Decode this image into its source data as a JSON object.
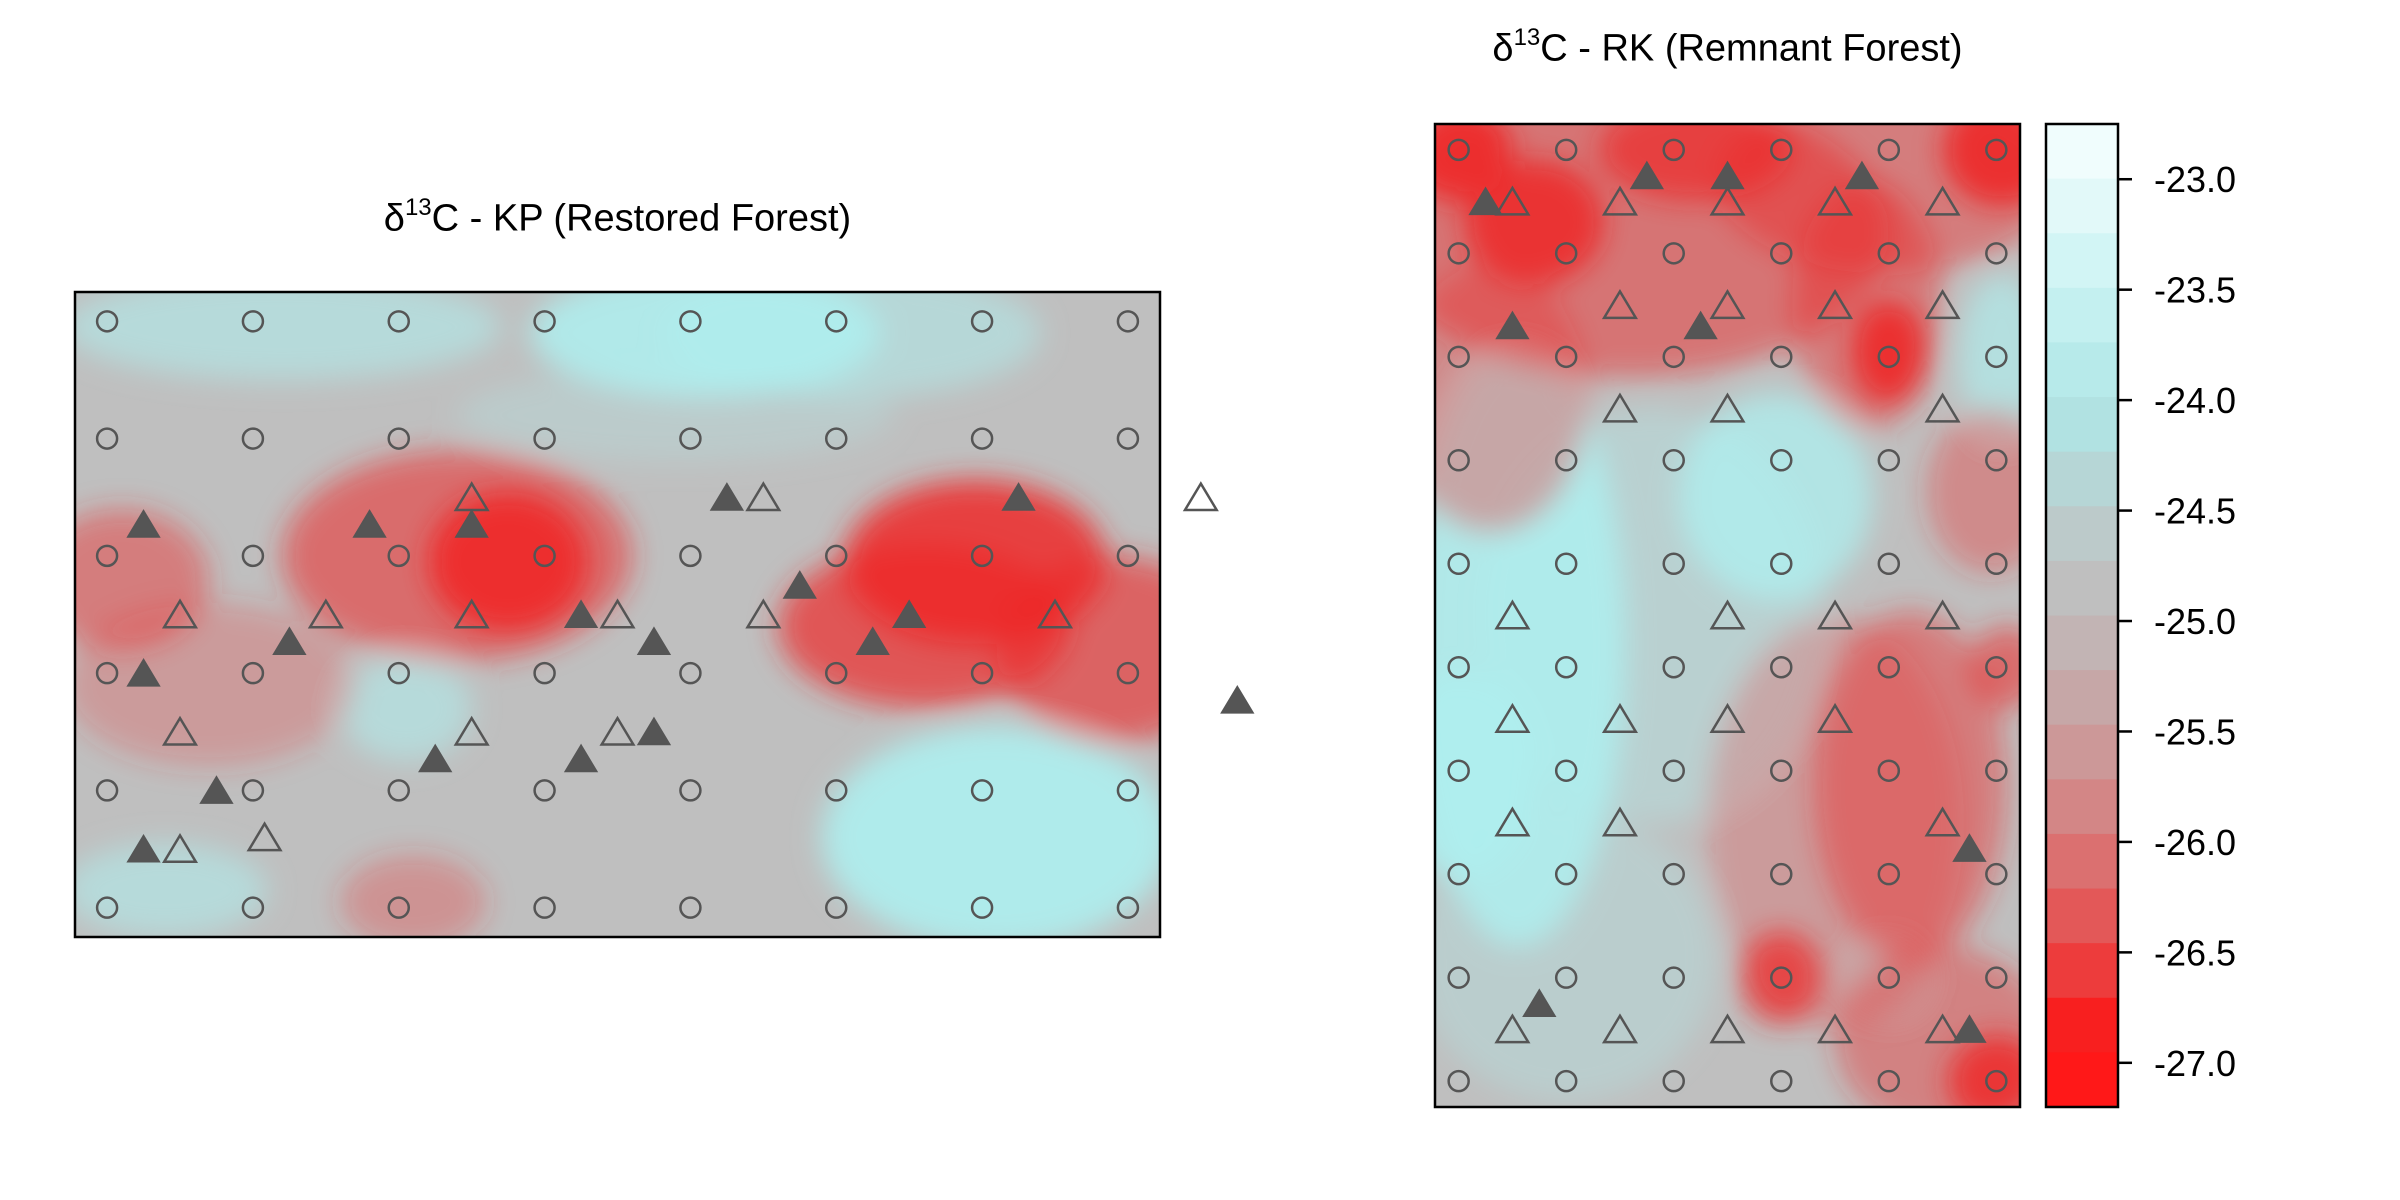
{
  "chart_data": [
    {
      "type": "heatmap",
      "title": {
        "symbol": "δ",
        "superscript": "13",
        "text": "C - KP (Restored Forest)"
      },
      "grid_x": [
        1,
        2,
        3,
        4,
        5,
        6,
        7,
        8
      ],
      "grid_y": [
        1,
        2,
        3,
        4,
        5,
        6
      ],
      "background_color": "#bfbfbf",
      "plot_border": true,
      "low_spots": [
        {
          "x": 3.75,
          "y": 3.95,
          "r": 0.55,
          "ry": 0.6,
          "level": 0.95
        },
        {
          "x": 3.4,
          "y": 4.0,
          "r": 1.2,
          "ry": 0.9,
          "level": 0.55
        },
        {
          "x": 6.95,
          "y": 3.95,
          "r": 0.9,
          "ry": 0.7,
          "level": 0.85
        },
        {
          "x": 6.6,
          "y": 3.4,
          "r": 1.0,
          "ry": 0.7,
          "level": 0.7
        },
        {
          "x": 7.9,
          "y": 3.2,
          "r": 0.8,
          "ry": 0.8,
          "level": 0.6
        },
        {
          "x": 1.1,
          "y": 3.8,
          "r": 0.6,
          "ry": 0.6,
          "level": 0.45
        },
        {
          "x": 1.7,
          "y": 2.9,
          "r": 1.0,
          "ry": 0.7,
          "level": 0.25
        },
        {
          "x": 3.1,
          "y": 1.05,
          "r": 0.5,
          "ry": 0.4,
          "level": 0.3
        }
      ],
      "high_spots": [
        {
          "x": 5.1,
          "y": 5.9,
          "r": 1.2,
          "ry": 0.55,
          "level": 0.85
        },
        {
          "x": 6.1,
          "y": 5.9,
          "r": 1.3,
          "ry": 0.55,
          "level": 0.5
        },
        {
          "x": 2.2,
          "y": 5.95,
          "r": 1.5,
          "ry": 0.45,
          "level": 0.55
        },
        {
          "x": 7.1,
          "y": 1.6,
          "r": 1.2,
          "ry": 0.95,
          "level": 0.9
        },
        {
          "x": 1.4,
          "y": 1.15,
          "r": 0.7,
          "ry": 0.4,
          "level": 0.55
        },
        {
          "x": 3.05,
          "y": 2.7,
          "r": 0.45,
          "ry": 0.45,
          "level": 0.55
        },
        {
          "x": 4.9,
          "y": 5.2,
          "r": 1.5,
          "ry": 0.4,
          "level": 0.25
        }
      ],
      "circles": [
        [
          1,
          6
        ],
        [
          2,
          6
        ],
        [
          3,
          6
        ],
        [
          4,
          6
        ],
        [
          5,
          6
        ],
        [
          6,
          6
        ],
        [
          7,
          6
        ],
        [
          8,
          6
        ],
        [
          1,
          5
        ],
        [
          2,
          5
        ],
        [
          3,
          5
        ],
        [
          4,
          5
        ],
        [
          5,
          5
        ],
        [
          6,
          5
        ],
        [
          7,
          5
        ],
        [
          8,
          5
        ],
        [
          1,
          4
        ],
        [
          2,
          4
        ],
        [
          3,
          4
        ],
        [
          4,
          4
        ],
        [
          5,
          4
        ],
        [
          6,
          4
        ],
        [
          7,
          4
        ],
        [
          8,
          4
        ],
        [
          1,
          3
        ],
        [
          2,
          3
        ],
        [
          3,
          3
        ],
        [
          4,
          3
        ],
        [
          5,
          3
        ],
        [
          6,
          3
        ],
        [
          7,
          3
        ],
        [
          8,
          3
        ],
        [
          1,
          2
        ],
        [
          2,
          2
        ],
        [
          3,
          2
        ],
        [
          4,
          2
        ],
        [
          5,
          2
        ],
        [
          6,
          2
        ],
        [
          7,
          2
        ],
        [
          8,
          2
        ],
        [
          1,
          1
        ],
        [
          2,
          1
        ],
        [
          3,
          1
        ],
        [
          4,
          1
        ],
        [
          5,
          1
        ],
        [
          6,
          1
        ],
        [
          7,
          1
        ],
        [
          8,
          1
        ]
      ],
      "open_triangles": [
        [
          3.5,
          4.5
        ],
        [
          5.5,
          4.5
        ],
        [
          8.5,
          4.5
        ],
        [
          1.5,
          3.5
        ],
        [
          2.5,
          3.5
        ],
        [
          3.5,
          3.5
        ],
        [
          4.5,
          3.5
        ],
        [
          5.5,
          3.5
        ],
        [
          7.5,
          3.5
        ],
        [
          1.5,
          2.5
        ],
        [
          3.5,
          2.5
        ],
        [
          4.5,
          2.5
        ],
        [
          1.5,
          1.5
        ],
        [
          2.08,
          1.6
        ]
      ],
      "filled_triangles": [
        [
          1.25,
          4.27
        ],
        [
          2.8,
          4.27
        ],
        [
          3.5,
          4.27
        ],
        [
          5.25,
          4.5
        ],
        [
          7.25,
          4.5
        ],
        [
          5.75,
          3.75
        ],
        [
          4.25,
          3.5
        ],
        [
          6.5,
          3.5
        ],
        [
          2.25,
          3.27
        ],
        [
          4.75,
          3.27
        ],
        [
          6.25,
          3.27
        ],
        [
          1.25,
          3.0
        ],
        [
          8.75,
          2.77
        ],
        [
          4.75,
          2.5
        ],
        [
          3.25,
          2.27
        ],
        [
          4.25,
          2.27
        ],
        [
          1.75,
          2.0
        ],
        [
          1.25,
          1.5
        ]
      ]
    },
    {
      "type": "heatmap",
      "title": {
        "symbol": "δ",
        "superscript": "13",
        "text": "C - RK (Remnant Forest)"
      },
      "grid_x": [
        1,
        2,
        3,
        4,
        5,
        6
      ],
      "grid_y": [
        1,
        2,
        3,
        4,
        5,
        6,
        7,
        8,
        9,
        10
      ],
      "background_color": "#bfbfbf",
      "plot_border": true,
      "low_spots": [
        {
          "x": 1.0,
          "y": 10.0,
          "r": 0.5,
          "ry": 0.5,
          "level": 0.95
        },
        {
          "x": 1.7,
          "y": 9.3,
          "r": 0.65,
          "ry": 0.6,
          "level": 0.85
        },
        {
          "x": 3.2,
          "y": 10.0,
          "r": 0.9,
          "ry": 0.5,
          "level": 0.7
        },
        {
          "x": 6.05,
          "y": 10.0,
          "r": 0.55,
          "ry": 0.55,
          "level": 0.9
        },
        {
          "x": 2.6,
          "y": 9.2,
          "r": 2.4,
          "ry": 1.4,
          "level": 0.5
        },
        {
          "x": 5.0,
          "y": 9.7,
          "r": 1.6,
          "ry": 0.9,
          "level": 0.45
        },
        {
          "x": 1.3,
          "y": 7.6,
          "r": 0.9,
          "ry": 1.3,
          "level": 0.35
        },
        {
          "x": 5.0,
          "y": 8.05,
          "r": 0.35,
          "ry": 0.5,
          "level": 0.9
        },
        {
          "x": 4.8,
          "y": 8.5,
          "r": 0.7,
          "ry": 1.2,
          "level": 0.45
        },
        {
          "x": 5.95,
          "y": 6.7,
          "r": 0.6,
          "ry": 0.8,
          "level": 0.35
        },
        {
          "x": 6.1,
          "y": 5.0,
          "r": 0.35,
          "ry": 0.4,
          "level": 0.55
        },
        {
          "x": 5.2,
          "y": 3.85,
          "r": 0.9,
          "ry": 1.7,
          "level": 0.45
        },
        {
          "x": 4.0,
          "y": 2.0,
          "r": 0.38,
          "ry": 0.45,
          "level": 0.75
        },
        {
          "x": 6.0,
          "y": 1.0,
          "r": 0.45,
          "ry": 0.45,
          "level": 0.85
        },
        {
          "x": 5.5,
          "y": 1.4,
          "r": 1.0,
          "ry": 0.9,
          "level": 0.4
        },
        {
          "x": 4.5,
          "y": 3.5,
          "r": 1.2,
          "ry": 2.0,
          "level": 0.25
        }
      ],
      "high_spots": [
        {
          "x": 1.55,
          "y": 5.2,
          "r": 1.0,
          "ry": 2.9,
          "level": 0.85
        },
        {
          "x": 1.0,
          "y": 3.95,
          "r": 0.7,
          "ry": 1.0,
          "level": 0.8
        },
        {
          "x": 3.95,
          "y": 6.65,
          "r": 0.9,
          "ry": 1.0,
          "level": 0.75
        },
        {
          "x": 2.8,
          "y": 5.5,
          "r": 1.6,
          "ry": 2.0,
          "level": 0.35
        },
        {
          "x": 6.05,
          "y": 8.0,
          "r": 0.4,
          "ry": 0.8,
          "level": 0.65
        },
        {
          "x": 5.0,
          "y": 2.0,
          "r": 0.4,
          "ry": 0.4,
          "level": 0.35
        },
        {
          "x": 2.0,
          "y": 2.2,
          "r": 1.4,
          "ry": 1.4,
          "level": 0.3
        }
      ],
      "circles": [
        [
          1,
          10
        ],
        [
          2,
          10
        ],
        [
          3,
          10
        ],
        [
          4,
          10
        ],
        [
          5,
          10
        ],
        [
          6,
          10
        ],
        [
          1,
          9
        ],
        [
          2,
          9
        ],
        [
          3,
          9
        ],
        [
          4,
          9
        ],
        [
          5,
          9
        ],
        [
          6,
          9
        ],
        [
          1,
          8
        ],
        [
          2,
          8
        ],
        [
          3,
          8
        ],
        [
          4,
          8
        ],
        [
          5,
          8
        ],
        [
          6,
          8
        ],
        [
          1,
          7
        ],
        [
          2,
          7
        ],
        [
          3,
          7
        ],
        [
          4,
          7
        ],
        [
          5,
          7
        ],
        [
          6,
          7
        ],
        [
          1,
          6
        ],
        [
          2,
          6
        ],
        [
          3,
          6
        ],
        [
          4,
          6
        ],
        [
          5,
          6
        ],
        [
          6,
          6
        ],
        [
          1,
          5
        ],
        [
          2,
          5
        ],
        [
          3,
          5
        ],
        [
          4,
          5
        ],
        [
          5,
          5
        ],
        [
          6,
          5
        ],
        [
          1,
          4
        ],
        [
          2,
          4
        ],
        [
          3,
          4
        ],
        [
          4,
          4
        ],
        [
          5,
          4
        ],
        [
          6,
          4
        ],
        [
          1,
          3
        ],
        [
          2,
          3
        ],
        [
          3,
          3
        ],
        [
          4,
          3
        ],
        [
          5,
          3
        ],
        [
          6,
          3
        ],
        [
          1,
          2
        ],
        [
          2,
          2
        ],
        [
          3,
          2
        ],
        [
          4,
          2
        ],
        [
          5,
          2
        ],
        [
          6,
          2
        ],
        [
          1,
          1
        ],
        [
          2,
          1
        ],
        [
          3,
          1
        ],
        [
          4,
          1
        ],
        [
          5,
          1
        ],
        [
          6,
          1
        ]
      ],
      "open_triangles": [
        [
          1.5,
          9.5
        ],
        [
          2.5,
          9.5
        ],
        [
          3.5,
          9.5
        ],
        [
          4.5,
          9.5
        ],
        [
          5.5,
          9.5
        ],
        [
          2.5,
          8.5
        ],
        [
          3.5,
          8.5
        ],
        [
          4.5,
          8.5
        ],
        [
          5.5,
          8.5
        ],
        [
          2.5,
          7.5
        ],
        [
          3.5,
          7.5
        ],
        [
          5.5,
          7.5
        ],
        [
          1.5,
          5.5
        ],
        [
          3.5,
          5.5
        ],
        [
          4.5,
          5.5
        ],
        [
          5.5,
          5.5
        ],
        [
          1.5,
          4.5
        ],
        [
          2.5,
          4.5
        ],
        [
          3.5,
          4.5
        ],
        [
          4.5,
          4.5
        ],
        [
          1.5,
          3.5
        ],
        [
          2.5,
          3.5
        ],
        [
          5.5,
          3.5
        ],
        [
          1.5,
          1.5
        ],
        [
          2.5,
          1.5
        ],
        [
          3.5,
          1.5
        ],
        [
          4.5,
          1.5
        ],
        [
          5.5,
          1.5
        ]
      ],
      "filled_triangles": [
        [
          1.25,
          9.5
        ],
        [
          2.75,
          9.75
        ],
        [
          3.5,
          9.75
        ],
        [
          4.75,
          9.75
        ],
        [
          1.5,
          8.3
        ],
        [
          3.25,
          8.3
        ],
        [
          5.75,
          3.25
        ],
        [
          5.75,
          1.5
        ],
        [
          1.75,
          1.75
        ]
      ]
    },
    {
      "type": "colorbar",
      "ticks": [
        "-23.0",
        "-23.5",
        "-24.0",
        "-24.5",
        "-25.0",
        "-25.5",
        "-26.0",
        "-26.5",
        "-27.0"
      ],
      "ylim": [
        -27.2,
        -22.75
      ],
      "colors": [
        "#f0fdfd",
        "#e2f9f9",
        "#d2f5f5",
        "#c4f0f0",
        "#b7eaea",
        "#b1e2e2",
        "#b6d6d6",
        "#bccaca",
        "#bfbfbf",
        "#c2b4b4",
        "#c6a7a7",
        "#cc9898",
        "#d38686",
        "#db7070",
        "#e35858",
        "#ed3c3c",
        "#f81f1f",
        "#ff1818"
      ]
    }
  ]
}
